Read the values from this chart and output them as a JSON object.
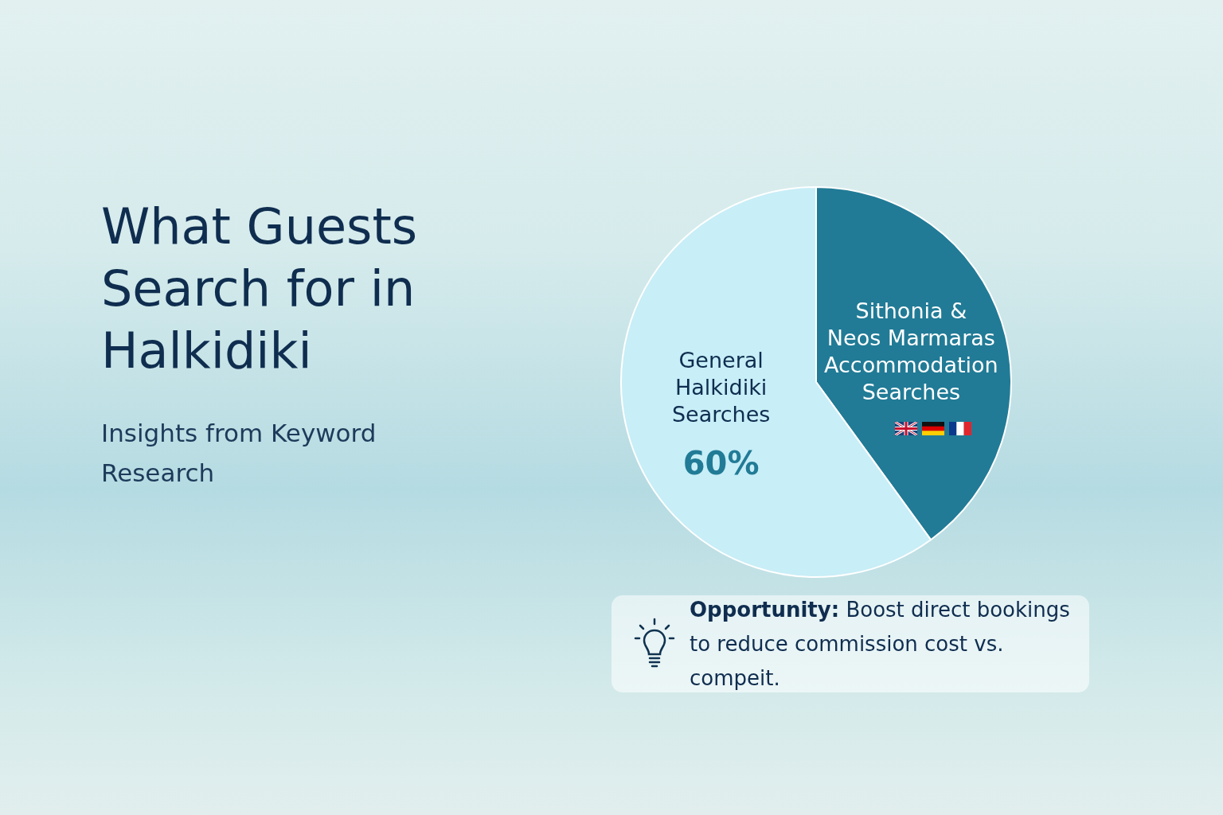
{
  "chart_data": {
    "type": "pie",
    "title": "What Guests Search for in Halkidiki",
    "subtitle": "Insights from Keyword Research",
    "categories": [
      "Sithonia & Neos Marmaras Accommodation Searches",
      "General Halkidiki Searches"
    ],
    "values": [
      40,
      60
    ],
    "colors": [
      "#217b96",
      "#c8eef7"
    ],
    "value_labels": [
      null,
      "60%"
    ],
    "legend": false,
    "annotations": [
      "Opportunity:",
      "Boost direct bookings to reduce commission cost vs. compeit."
    ]
  }
}
